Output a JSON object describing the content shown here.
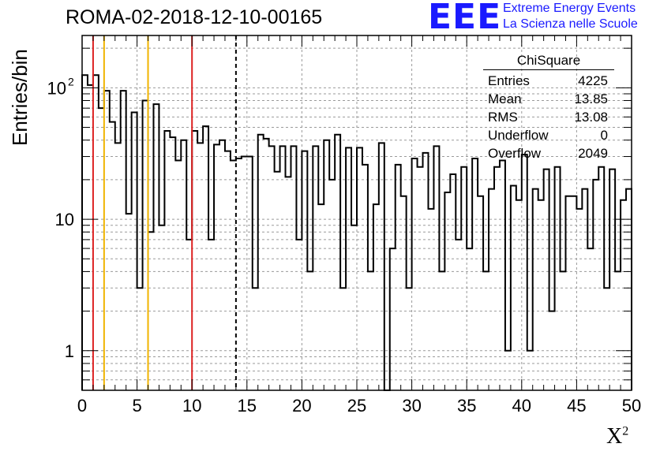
{
  "title": "ROMA-02-2018-12-10-00165",
  "logo": {
    "text": "EEE",
    "line1": "Extreme Energy Events",
    "line2": "La Scienza nelle Scuole",
    "color": "#1a1aff"
  },
  "stats": {
    "title": "ChiSquare",
    "rows": [
      {
        "label": "Entries",
        "value": "4225"
      },
      {
        "label": "Mean",
        "value": "13.85"
      },
      {
        "label": "RMS",
        "value": "13.08"
      },
      {
        "label": "Underflow",
        "value": "0"
      },
      {
        "label": "Overflow",
        "value": "2049"
      }
    ]
  },
  "chart_data": {
    "type": "histogram",
    "title": "ROMA-02-2018-12-10-00165",
    "xlabel": "X",
    "xlabel_sup": "2",
    "ylabel": "Entries/bin",
    "xlim": [
      0,
      50
    ],
    "ylim": [
      0.5,
      250
    ],
    "yscale": "log",
    "grid": true,
    "bin_width": 0.5,
    "x_ticks": [
      "0",
      "5",
      "10",
      "15",
      "20",
      "25",
      "30",
      "35",
      "40",
      "45",
      "50"
    ],
    "y_ticks": [
      {
        "value": 1,
        "base": "1",
        "exp": ""
      },
      {
        "value": 10,
        "base": "10",
        "exp": ""
      },
      {
        "value": 100,
        "base": "10",
        "exp": "2"
      }
    ],
    "values": [
      125,
      105,
      125,
      70,
      95,
      55,
      38,
      95,
      11,
      65,
      3,
      80,
      8,
      75,
      9,
      47,
      42,
      28,
      40,
      7,
      47,
      38,
      51,
      7,
      37,
      40,
      33,
      28,
      29,
      30,
      30,
      3,
      44,
      41,
      36,
      23,
      36,
      21,
      36,
      7,
      33,
      4,
      36,
      13,
      40,
      20,
      44,
      3,
      35,
      9,
      35,
      26,
      4,
      13,
      38,
      0.5,
      6,
      26,
      15,
      3,
      29,
      25,
      32,
      12,
      36,
      4,
      16,
      22,
      7,
      25,
      6,
      29,
      15,
      4,
      17,
      25,
      28,
      1,
      18,
      14,
      31,
      1,
      17,
      14,
      24,
      2,
      25,
      4,
      15,
      15,
      12,
      17,
      6,
      20,
      25,
      3,
      24,
      4,
      14,
      17
    ],
    "reference_lines": [
      {
        "x": 1,
        "color": "#dd2222"
      },
      {
        "x": 2,
        "color": "#f0b400"
      },
      {
        "x": 6,
        "color": "#f0b400"
      },
      {
        "x": 10,
        "color": "#dd2222"
      },
      {
        "x": 14,
        "color": "#000000",
        "dashed": true
      }
    ]
  }
}
